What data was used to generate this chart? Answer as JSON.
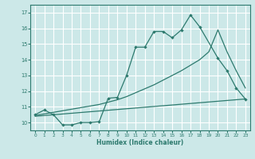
{
  "xlabel": "Humidex (Indice chaleur)",
  "bg_color": "#cce8e8",
  "line_color": "#2d7a6e",
  "grid_color": "#ffffff",
  "xlim": [
    -0.5,
    23.5
  ],
  "ylim": [
    9.5,
    17.5
  ],
  "xticks": [
    0,
    1,
    2,
    3,
    4,
    5,
    6,
    7,
    8,
    9,
    10,
    11,
    12,
    13,
    14,
    15,
    16,
    17,
    18,
    19,
    20,
    21,
    22,
    23
  ],
  "yticks": [
    10,
    11,
    12,
    13,
    14,
    15,
    16,
    17
  ],
  "line1_x": [
    0,
    1,
    2,
    3,
    4,
    5,
    6,
    7,
    8,
    9,
    10,
    11,
    12,
    13,
    14,
    15,
    16,
    17,
    18,
    20,
    21,
    22,
    23
  ],
  "line1_y": [
    10.5,
    10.8,
    10.5,
    9.85,
    9.85,
    10.0,
    10.0,
    10.05,
    11.55,
    11.6,
    13.0,
    14.8,
    14.8,
    15.8,
    15.8,
    15.4,
    15.9,
    16.85,
    16.1,
    14.1,
    13.3,
    12.2,
    11.5
  ],
  "line2_x": [
    0,
    1,
    2,
    3,
    4,
    5,
    6,
    7,
    8,
    9,
    10,
    11,
    12,
    13,
    14,
    15,
    16,
    17,
    18,
    19,
    20,
    21,
    22,
    23
  ],
  "line2_y": [
    10.45,
    10.55,
    10.65,
    10.75,
    10.85,
    10.95,
    11.05,
    11.15,
    11.3,
    11.45,
    11.65,
    11.9,
    12.15,
    12.4,
    12.7,
    13.0,
    13.3,
    13.65,
    14.0,
    14.5,
    15.9,
    14.5,
    13.3,
    12.2
  ],
  "line3_x": [
    0,
    23
  ],
  "line3_y": [
    10.4,
    11.5
  ]
}
